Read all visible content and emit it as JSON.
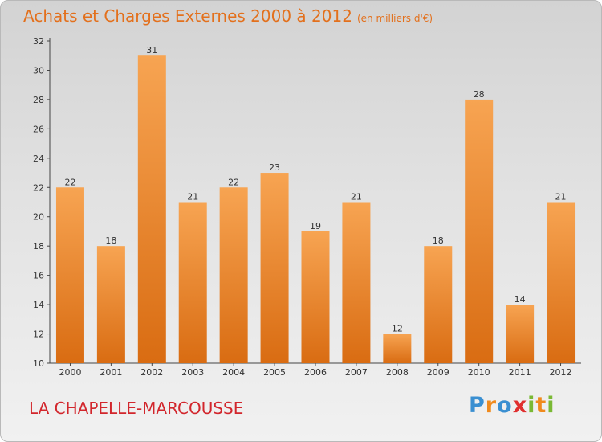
{
  "header": {
    "title": "Achats et Charges Externes 2000 à 2012",
    "unit": "(en milliers d'€)"
  },
  "footer": {
    "city": "LA CHAPELLE-MARCOUSSE",
    "logo_letters": [
      "P",
      "r",
      "o",
      "x",
      "i",
      "t",
      "i"
    ]
  },
  "colors": {
    "bar_top": "#f7a452",
    "bar_bottom": "#d96c12",
    "title": "#e3701c",
    "city": "#d2262c",
    "logo": [
      "#3a8fd1",
      "#f08a1c",
      "#3a8fd1",
      "#e02f2f",
      "#7ab934",
      "#f08a1c",
      "#7ab934"
    ]
  },
  "chart_data": {
    "type": "bar",
    "categories": [
      "2000",
      "2001",
      "2002",
      "2003",
      "2004",
      "2005",
      "2006",
      "2007",
      "2008",
      "2009",
      "2010",
      "2011",
      "2012"
    ],
    "values": [
      22,
      18,
      31,
      21,
      22,
      23,
      19,
      21,
      12,
      18,
      28,
      14,
      21
    ],
    "ylim": [
      10,
      32
    ],
    "yticks": [
      10,
      12,
      14,
      16,
      18,
      20,
      22,
      24,
      26,
      28,
      30,
      32
    ],
    "grid": false,
    "title": "Achats et Charges Externes 2000 à 2012",
    "unit": "(en milliers d'€)",
    "xlabel": "",
    "ylabel": ""
  }
}
